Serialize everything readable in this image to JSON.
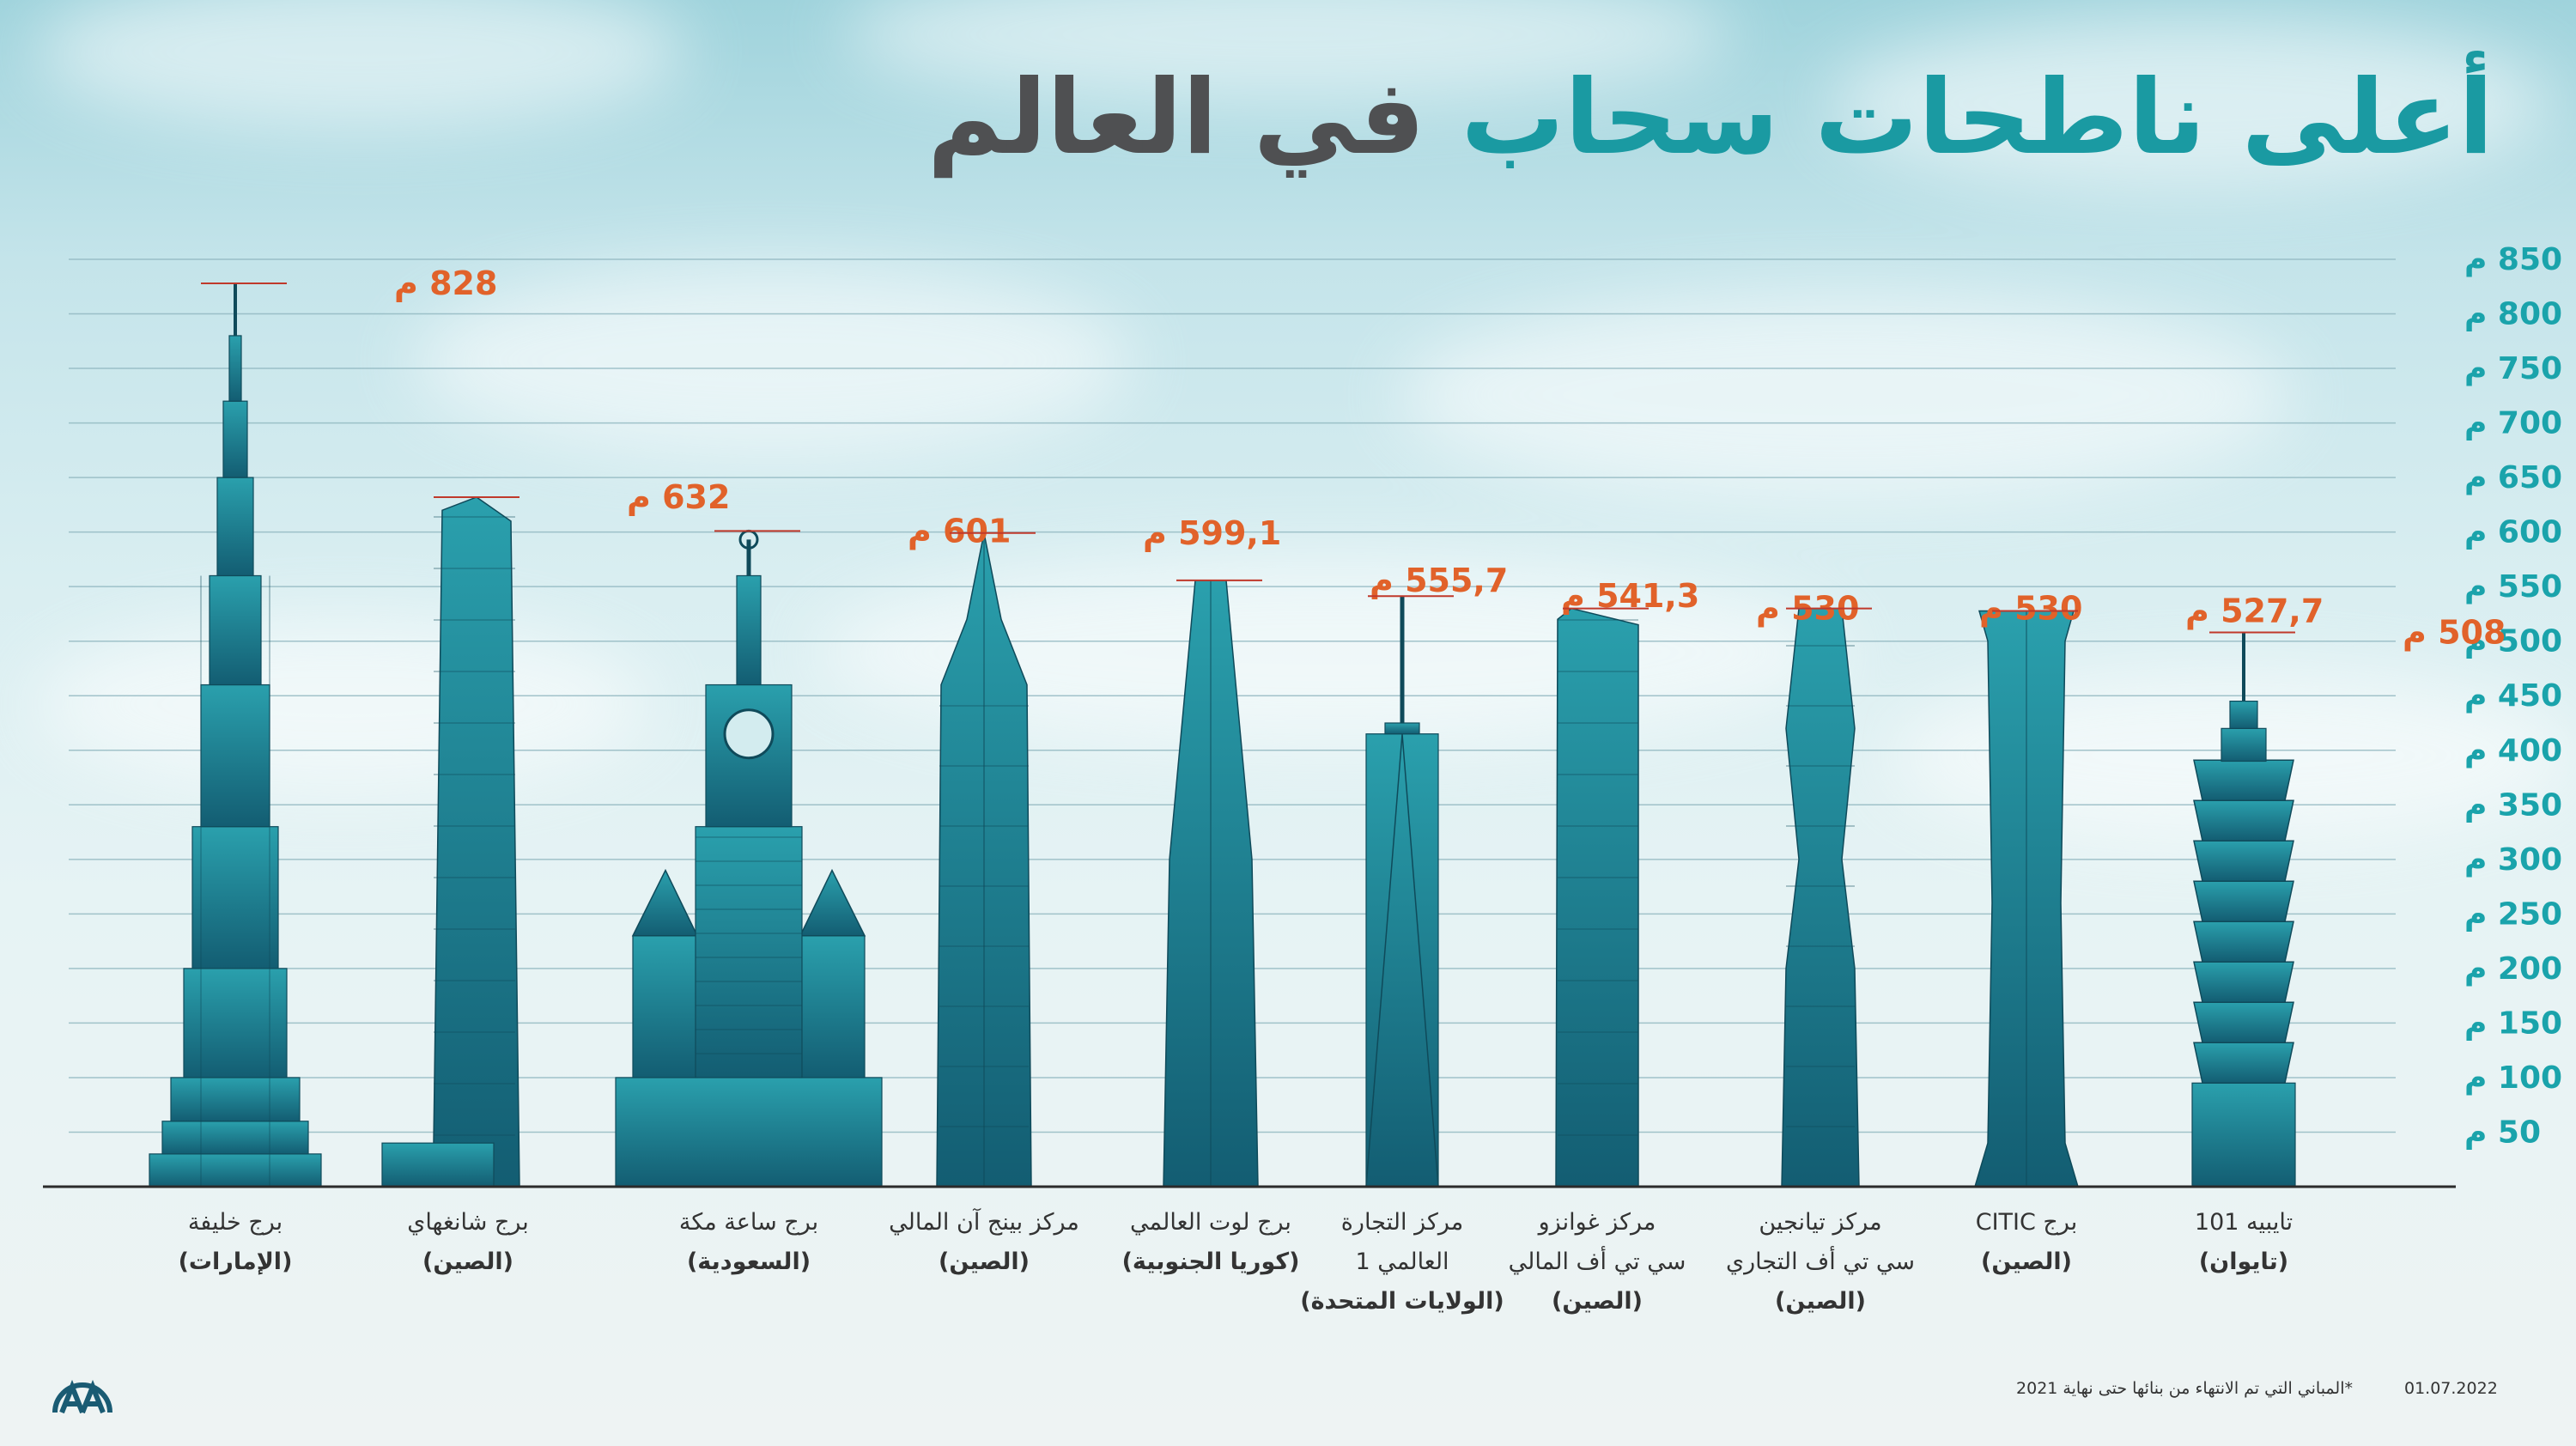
{
  "title": {
    "part1": "أعلى ناطحات سحاب",
    "part2": "في العالم"
  },
  "colors": {
    "title_accent": "#1a9aa2",
    "title_dark": "#4f5052",
    "value_label": "#e1622a",
    "building": "#1e7c8c",
    "axis_labels": "#1aa3ab"
  },
  "chart_data": {
    "type": "bar",
    "unit": "م",
    "ylim": [
      0,
      850
    ],
    "yticks": [
      50,
      100,
      150,
      200,
      250,
      300,
      350,
      400,
      450,
      500,
      550,
      600,
      650,
      700,
      750,
      800,
      850
    ],
    "grid": true,
    "categories": [
      {
        "name": "برج خليفة",
        "name2": "",
        "country": "(الإمارات)",
        "icon": "burj-khalifa"
      },
      {
        "name": "برج شانغهاي",
        "name2": "",
        "country": "(الصين)",
        "icon": "shanghai-tower"
      },
      {
        "name": "برج ساعة مكة",
        "name2": "",
        "country": "(السعودية)",
        "icon": "makkah-clock-tower"
      },
      {
        "name": "مركز بينج آن المالي",
        "name2": "",
        "country": "(الصين)",
        "icon": "ping-an-center"
      },
      {
        "name": "برج لوت العالمي",
        "name2": "",
        "country": "(كوريا الجنوبية)",
        "icon": "lotte-tower"
      },
      {
        "name": "مركز التجارة",
        "name2": "العالمي 1",
        "country": "(الولايات المتحدة)",
        "icon": "one-wtc"
      },
      {
        "name": "مركز غوانزو",
        "name2": "سي تي أف المالي",
        "country": "(الصين)",
        "icon": "guangzhou-ctf"
      },
      {
        "name": "مركز تيانجين",
        "name2": "سي تي أف التجاري",
        "country": "(الصين)",
        "icon": "tianjin-ctf"
      },
      {
        "name": "برج CITIC",
        "name2": "",
        "country": "(الصين)",
        "icon": "citic-tower"
      },
      {
        "name": "تايبيه 101",
        "name2": "",
        "country": "(تايوان)",
        "icon": "taipei-101"
      }
    ],
    "values": [
      828,
      632,
      601,
      599.1,
      555.7,
      541.3,
      530,
      530,
      527.7,
      508
    ],
    "value_labels": [
      "828 م",
      "632 م",
      "601 م",
      "599,1 م",
      "555,7 م",
      "541,3 م",
      "530 م",
      "530 م",
      "527,7 م",
      "508 م"
    ]
  },
  "footnote": "*المباني التي تم الانتهاء من بنائها حتى نهاية 2021",
  "date": "01.07.2022",
  "logo_text": "AA"
}
